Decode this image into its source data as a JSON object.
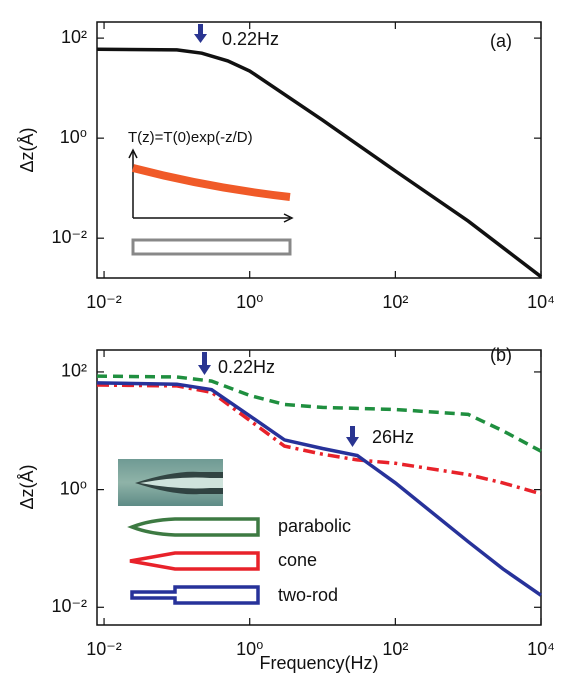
{
  "chart_data": [
    {
      "type": "line",
      "panel_label": "(a)",
      "ylabel": "Δz(Å)",
      "log_x": true,
      "log_y": true,
      "xlim": [
        0.008,
        10000
      ],
      "ylim": [
        0.0016,
        210
      ],
      "xticks": [
        {
          "value": 0.01,
          "label": "10⁻²"
        },
        {
          "value": 1,
          "label": "10⁰"
        },
        {
          "value": 100,
          "label": "10²"
        },
        {
          "value": 10000,
          "label": "10⁴"
        }
      ],
      "yticks": [
        {
          "value": 0.01,
          "label": "10⁻²"
        },
        {
          "value": 1,
          "label": "10⁰"
        },
        {
          "value": 100,
          "label": "10²"
        }
      ],
      "x": [
        0.008,
        0.1,
        0.22,
        0.5,
        1,
        10,
        100,
        1000,
        10000
      ],
      "series": [
        {
          "color": "#111111",
          "dash": "solid",
          "values": [
            60,
            58,
            50,
            35,
            22,
            2.3,
            0.22,
            0.022,
            0.0017
          ]
        }
      ],
      "annotations": [
        "0.22Hz",
        "T(z)=T(0)exp(-z/D)"
      ]
    },
    {
      "type": "line",
      "panel_label": "(b)",
      "ylabel": "Δz(Å)",
      "xlabel": "Frequency(Hz)",
      "log_x": true,
      "log_y": true,
      "xlim": [
        0.008,
        10000
      ],
      "ylim": [
        0.005,
        236
      ],
      "xticks": [
        {
          "value": 0.01,
          "label": "10⁻²"
        },
        {
          "value": 1,
          "label": "10⁰"
        },
        {
          "value": 100,
          "label": "10²"
        },
        {
          "value": 10000,
          "label": "10⁴"
        }
      ],
      "yticks": [
        {
          "value": 0.01,
          "label": "10⁻²"
        },
        {
          "value": 1,
          "label": "10⁰"
        },
        {
          "value": 100,
          "label": "10²"
        }
      ],
      "x": [
        0.008,
        0.1,
        0.3,
        1,
        3,
        10,
        30,
        100,
        1000,
        3000,
        10000
      ],
      "series": [
        {
          "name": "parabolic",
          "color": "#1f8f3f",
          "dash": "dashed",
          "values": [
            85,
            82,
            70,
            40,
            28,
            25,
            24,
            23,
            19,
            10,
            4.5
          ]
        },
        {
          "name": "cone",
          "color": "#e8222a",
          "dash": "dash-dot",
          "values": [
            60,
            58,
            45,
            15,
            5.5,
            4,
            3.2,
            2.8,
            1.8,
            1.3,
            0.85
          ]
        },
        {
          "name": "two-rod",
          "color": "#27329a",
          "dash": "solid",
          "values": [
            65,
            62,
            50,
            18,
            7,
            5,
            3.8,
            1.3,
            0.13,
            0.045,
            0.016
          ]
        }
      ],
      "annotations": [
        "0.22Hz",
        "26Hz"
      ]
    }
  ]
}
